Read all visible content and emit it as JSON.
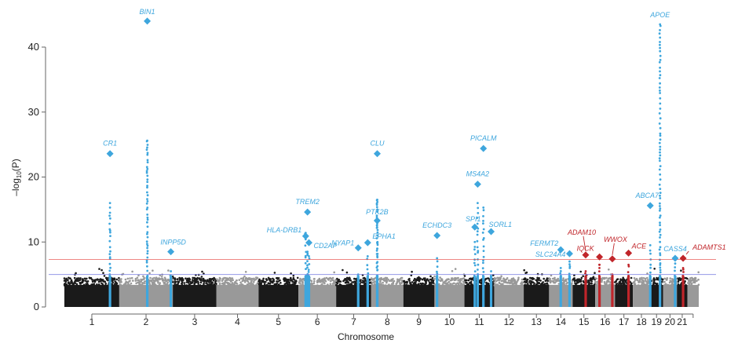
{
  "chart_data": {
    "type": "scatter",
    "subtype": "manhattan",
    "title": "",
    "xlabel": "Chromosome",
    "ylabel": {
      "prefix": "–log",
      "sub": "10",
      "suffix": "(P)"
    },
    "ylim": [
      0,
      45
    ],
    "yticks": [
      0,
      10,
      20,
      30,
      40
    ],
    "grid": false,
    "thresholds": [
      {
        "value": 7.3,
        "color": "#e8534f"
      },
      {
        "value": 5.0,
        "color": "#7b7fe0"
      }
    ],
    "colors": {
      "odd_chromosome": "#1a1a1a",
      "even_chromosome": "#999999",
      "known_locus": "#3ea6dd",
      "novel_locus": "#c0252a"
    },
    "chromosomes": [
      {
        "label": "1",
        "length_mb": 249
      },
      {
        "label": "2",
        "length_mb": 243
      },
      {
        "label": "3",
        "length_mb": 198
      },
      {
        "label": "4",
        "length_mb": 191
      },
      {
        "label": "5",
        "length_mb": 181
      },
      {
        "label": "6",
        "length_mb": 171
      },
      {
        "label": "7",
        "length_mb": 159
      },
      {
        "label": "8",
        "length_mb": 146
      },
      {
        "label": "9",
        "length_mb": 141
      },
      {
        "label": "10",
        "length_mb": 136
      },
      {
        "label": "11",
        "length_mb": 135
      },
      {
        "label": "12",
        "length_mb": 134
      },
      {
        "label": "13",
        "length_mb": 115
      },
      {
        "label": "14",
        "length_mb": 107
      },
      {
        "label": "15",
        "length_mb": 102
      },
      {
        "label": "16",
        "length_mb": 90
      },
      {
        "label": "17",
        "length_mb": 81
      },
      {
        "label": "18",
        "length_mb": 78
      },
      {
        "label": "19",
        "length_mb": 59
      },
      {
        "label": "20",
        "length_mb": 63
      },
      {
        "label": "21",
        "length_mb": 48
      },
      {
        "label": "",
        "length_mb": 51
      }
    ],
    "loci": [
      {
        "gene": "CR1",
        "chr": "1",
        "pos_mb": 207,
        "lead": 23.6,
        "column_max": 16,
        "status": "known"
      },
      {
        "gene": "BIN1",
        "chr": "2",
        "pos_mb": 127,
        "lead": 44.0,
        "column_max": 25.6,
        "status": "known"
      },
      {
        "gene": "INPP5D",
        "chr": "2",
        "pos_mb": 234,
        "lead": 8.5,
        "column_max": 5.5,
        "status": "known"
      },
      {
        "gene": "HLA-DRB1",
        "chr": "6",
        "pos_mb": 32.6,
        "lead": 10.9,
        "column_max": 11.4,
        "status": "known"
      },
      {
        "gene": "TREM2",
        "chr": "6",
        "pos_mb": 41,
        "lead": 14.6,
        "column_max": 8.5,
        "status": "known"
      },
      {
        "gene": "CD2AP",
        "chr": "6",
        "pos_mb": 47.5,
        "lead": 9.9,
        "column_max": 7.8,
        "status": "known"
      },
      {
        "gene": "NYAP1",
        "chr": "7",
        "pos_mb": 100,
        "lead": 9.1,
        "column_max": 5.0,
        "status": "known"
      },
      {
        "gene": "EPHA1",
        "chr": "7",
        "pos_mb": 143,
        "lead": 9.9,
        "column_max": 7.8,
        "status": "known"
      },
      {
        "gene": "PTK2B",
        "chr": "8",
        "pos_mb": 27.2,
        "lead": 13.3,
        "column_max": 16.5,
        "status": "known"
      },
      {
        "gene": "CLU",
        "chr": "8",
        "pos_mb": 27.4,
        "lead": 23.6,
        "column_max": 16.5,
        "status": "known"
      },
      {
        "gene": "ECHDC3",
        "chr": "10",
        "pos_mb": 11.7,
        "lead": 11.0,
        "column_max": 7.5,
        "status": "known"
      },
      {
        "gene": "SPI1",
        "chr": "11",
        "pos_mb": 47,
        "lead": 12.3,
        "column_max": 10,
        "status": "known"
      },
      {
        "gene": "MS4A2",
        "chr": "11",
        "pos_mb": 60,
        "lead": 18.9,
        "column_max": 16,
        "status": "known"
      },
      {
        "gene": "PICALM",
        "chr": "11",
        "pos_mb": 86,
        "lead": 24.4,
        "column_max": 15.3,
        "status": "known"
      },
      {
        "gene": "SORL1",
        "chr": "11",
        "pos_mb": 121,
        "lead": 11.6,
        "column_max": 5.5,
        "status": "known"
      },
      {
        "gene": "FERMT2",
        "chr": "14",
        "pos_mb": 53,
        "lead": 8.8,
        "column_max": 6.0,
        "status": "known"
      },
      {
        "gene": "SLC24A4",
        "chr": "14",
        "pos_mb": 92.9,
        "lead": 8.2,
        "column_max": 7.0,
        "status": "known"
      },
      {
        "gene": "ADAM10",
        "chr": "15",
        "pos_mb": 59,
        "lead": 8.0,
        "column_max": 5.5,
        "status": "novel"
      },
      {
        "gene": "IQCK",
        "chr": "16",
        "pos_mb": 19.8,
        "lead": 7.7,
        "column_max": 6.5,
        "status": "novel"
      },
      {
        "gene": "WWOX",
        "chr": "16",
        "pos_mb": 78,
        "lead": 7.4,
        "column_max": 5.0,
        "status": "novel"
      },
      {
        "gene": "ACE",
        "chr": "17",
        "pos_mb": 61.5,
        "lead": 8.3,
        "column_max": 6.5,
        "status": "novel"
      },
      {
        "gene": "ABCA7",
        "chr": "19",
        "pos_mb": 1,
        "lead": 15.6,
        "column_max": 9.5,
        "status": "known"
      },
      {
        "gene": "APOE",
        "chr": "19",
        "pos_mb": 45.4,
        "lead": null,
        "column_max": 43.5,
        "status": "known"
      },
      {
        "gene": "CASS4",
        "chr": "20",
        "pos_mb": 55,
        "lead": 7.5,
        "column_max": 7.5,
        "status": "known"
      },
      {
        "gene": "ADAMTS1",
        "chr": "21",
        "pos_mb": 28,
        "lead": 7.5,
        "column_max": 6.0,
        "status": "novel"
      }
    ]
  }
}
